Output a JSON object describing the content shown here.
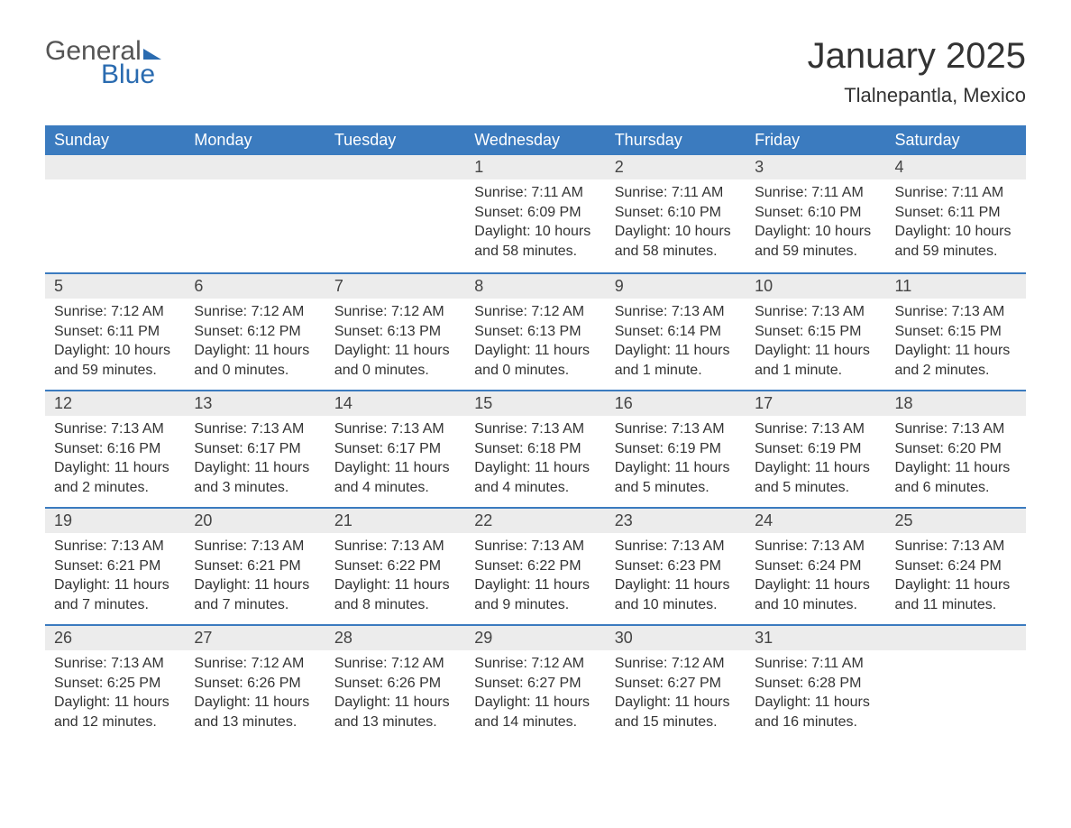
{
  "brand": {
    "text1": "General",
    "text2": "Blue"
  },
  "title": "January 2025",
  "location": "Tlalnepantla, Mexico",
  "colors": {
    "header_bg": "#3b7bbf",
    "header_text": "#ffffff",
    "daynum_bg": "#ececec",
    "row_border": "#3b7bbf",
    "body_text": "#333333",
    "brand_blue": "#2a6bb0"
  },
  "typography": {
    "title_fontsize": 40,
    "location_fontsize": 22,
    "header_fontsize": 18,
    "daynum_fontsize": 18,
    "body_fontsize": 16
  },
  "layout": {
    "weeks": 5,
    "cols": 7
  },
  "weekdays": [
    "Sunday",
    "Monday",
    "Tuesday",
    "Wednesday",
    "Thursday",
    "Friday",
    "Saturday"
  ],
  "weeks": [
    [
      null,
      null,
      null,
      {
        "n": "1",
        "sunrise": "Sunrise: 7:11 AM",
        "sunset": "Sunset: 6:09 PM",
        "daylight": "Daylight: 10 hours and 58 minutes."
      },
      {
        "n": "2",
        "sunrise": "Sunrise: 7:11 AM",
        "sunset": "Sunset: 6:10 PM",
        "daylight": "Daylight: 10 hours and 58 minutes."
      },
      {
        "n": "3",
        "sunrise": "Sunrise: 7:11 AM",
        "sunset": "Sunset: 6:10 PM",
        "daylight": "Daylight: 10 hours and 59 minutes."
      },
      {
        "n": "4",
        "sunrise": "Sunrise: 7:11 AM",
        "sunset": "Sunset: 6:11 PM",
        "daylight": "Daylight: 10 hours and 59 minutes."
      }
    ],
    [
      {
        "n": "5",
        "sunrise": "Sunrise: 7:12 AM",
        "sunset": "Sunset: 6:11 PM",
        "daylight": "Daylight: 10 hours and 59 minutes."
      },
      {
        "n": "6",
        "sunrise": "Sunrise: 7:12 AM",
        "sunset": "Sunset: 6:12 PM",
        "daylight": "Daylight: 11 hours and 0 minutes."
      },
      {
        "n": "7",
        "sunrise": "Sunrise: 7:12 AM",
        "sunset": "Sunset: 6:13 PM",
        "daylight": "Daylight: 11 hours and 0 minutes."
      },
      {
        "n": "8",
        "sunrise": "Sunrise: 7:12 AM",
        "sunset": "Sunset: 6:13 PM",
        "daylight": "Daylight: 11 hours and 0 minutes."
      },
      {
        "n": "9",
        "sunrise": "Sunrise: 7:13 AM",
        "sunset": "Sunset: 6:14 PM",
        "daylight": "Daylight: 11 hours and 1 minute."
      },
      {
        "n": "10",
        "sunrise": "Sunrise: 7:13 AM",
        "sunset": "Sunset: 6:15 PM",
        "daylight": "Daylight: 11 hours and 1 minute."
      },
      {
        "n": "11",
        "sunrise": "Sunrise: 7:13 AM",
        "sunset": "Sunset: 6:15 PM",
        "daylight": "Daylight: 11 hours and 2 minutes."
      }
    ],
    [
      {
        "n": "12",
        "sunrise": "Sunrise: 7:13 AM",
        "sunset": "Sunset: 6:16 PM",
        "daylight": "Daylight: 11 hours and 2 minutes."
      },
      {
        "n": "13",
        "sunrise": "Sunrise: 7:13 AM",
        "sunset": "Sunset: 6:17 PM",
        "daylight": "Daylight: 11 hours and 3 minutes."
      },
      {
        "n": "14",
        "sunrise": "Sunrise: 7:13 AM",
        "sunset": "Sunset: 6:17 PM",
        "daylight": "Daylight: 11 hours and 4 minutes."
      },
      {
        "n": "15",
        "sunrise": "Sunrise: 7:13 AM",
        "sunset": "Sunset: 6:18 PM",
        "daylight": "Daylight: 11 hours and 4 minutes."
      },
      {
        "n": "16",
        "sunrise": "Sunrise: 7:13 AM",
        "sunset": "Sunset: 6:19 PM",
        "daylight": "Daylight: 11 hours and 5 minutes."
      },
      {
        "n": "17",
        "sunrise": "Sunrise: 7:13 AM",
        "sunset": "Sunset: 6:19 PM",
        "daylight": "Daylight: 11 hours and 5 minutes."
      },
      {
        "n": "18",
        "sunrise": "Sunrise: 7:13 AM",
        "sunset": "Sunset: 6:20 PM",
        "daylight": "Daylight: 11 hours and 6 minutes."
      }
    ],
    [
      {
        "n": "19",
        "sunrise": "Sunrise: 7:13 AM",
        "sunset": "Sunset: 6:21 PM",
        "daylight": "Daylight: 11 hours and 7 minutes."
      },
      {
        "n": "20",
        "sunrise": "Sunrise: 7:13 AM",
        "sunset": "Sunset: 6:21 PM",
        "daylight": "Daylight: 11 hours and 7 minutes."
      },
      {
        "n": "21",
        "sunrise": "Sunrise: 7:13 AM",
        "sunset": "Sunset: 6:22 PM",
        "daylight": "Daylight: 11 hours and 8 minutes."
      },
      {
        "n": "22",
        "sunrise": "Sunrise: 7:13 AM",
        "sunset": "Sunset: 6:22 PM",
        "daylight": "Daylight: 11 hours and 9 minutes."
      },
      {
        "n": "23",
        "sunrise": "Sunrise: 7:13 AM",
        "sunset": "Sunset: 6:23 PM",
        "daylight": "Daylight: 11 hours and 10 minutes."
      },
      {
        "n": "24",
        "sunrise": "Sunrise: 7:13 AM",
        "sunset": "Sunset: 6:24 PM",
        "daylight": "Daylight: 11 hours and 10 minutes."
      },
      {
        "n": "25",
        "sunrise": "Sunrise: 7:13 AM",
        "sunset": "Sunset: 6:24 PM",
        "daylight": "Daylight: 11 hours and 11 minutes."
      }
    ],
    [
      {
        "n": "26",
        "sunrise": "Sunrise: 7:13 AM",
        "sunset": "Sunset: 6:25 PM",
        "daylight": "Daylight: 11 hours and 12 minutes."
      },
      {
        "n": "27",
        "sunrise": "Sunrise: 7:12 AM",
        "sunset": "Sunset: 6:26 PM",
        "daylight": "Daylight: 11 hours and 13 minutes."
      },
      {
        "n": "28",
        "sunrise": "Sunrise: 7:12 AM",
        "sunset": "Sunset: 6:26 PM",
        "daylight": "Daylight: 11 hours and 13 minutes."
      },
      {
        "n": "29",
        "sunrise": "Sunrise: 7:12 AM",
        "sunset": "Sunset: 6:27 PM",
        "daylight": "Daylight: 11 hours and 14 minutes."
      },
      {
        "n": "30",
        "sunrise": "Sunrise: 7:12 AM",
        "sunset": "Sunset: 6:27 PM",
        "daylight": "Daylight: 11 hours and 15 minutes."
      },
      {
        "n": "31",
        "sunrise": "Sunrise: 7:11 AM",
        "sunset": "Sunset: 6:28 PM",
        "daylight": "Daylight: 11 hours and 16 minutes."
      },
      null
    ]
  ]
}
